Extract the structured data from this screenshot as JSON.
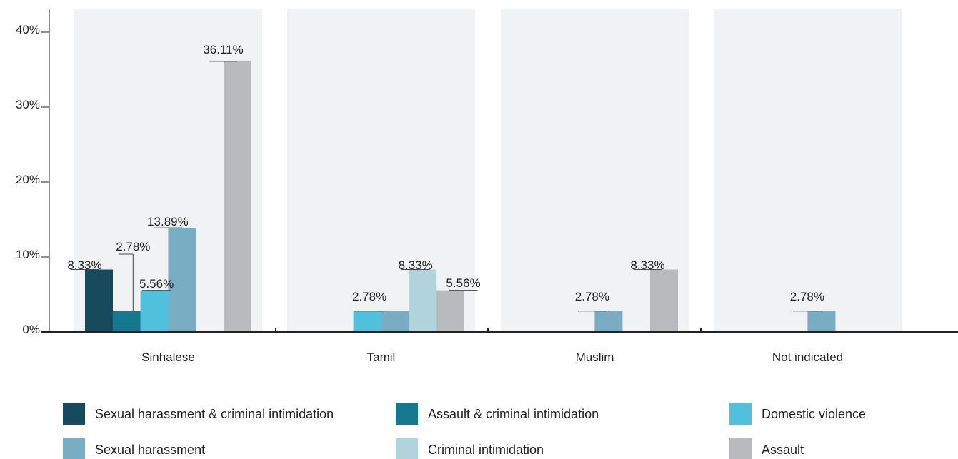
{
  "chart_data": {
    "type": "bar",
    "categories": [
      "Sinhalese",
      "Tamil",
      "Muslim",
      "Not indicated"
    ],
    "series": [
      {
        "name": "Sexual harassment & criminal intimidation",
        "color": "#164a5c",
        "values": [
          8.33,
          null,
          null,
          null
        ]
      },
      {
        "name": "Assault & criminal intimidation",
        "color": "#16788f",
        "values": [
          2.78,
          null,
          null,
          null
        ]
      },
      {
        "name": "Domestic violence",
        "color": "#4fc1dc",
        "values": [
          5.56,
          2.78,
          null,
          null
        ]
      },
      {
        "name": "Sexual harassment",
        "color": "#79adc4",
        "values": [
          13.89,
          2.78,
          2.78,
          2.78
        ]
      },
      {
        "name": "Criminal intimidation",
        "color": "#b0d3dc",
        "values": [
          null,
          8.33,
          null,
          null
        ]
      },
      {
        "name": "Assault",
        "color": "#b9babd",
        "values": [
          36.11,
          5.56,
          8.33,
          null
        ]
      }
    ],
    "data_labels": [
      [
        "8.33%",
        null,
        null,
        null
      ],
      [
        "2.78%",
        null,
        null,
        null
      ],
      [
        "5.56%",
        "2.78%",
        null,
        null
      ],
      [
        "13.89%",
        null,
        "2.78%",
        "2.78%"
      ],
      [
        null,
        "8.33%",
        null,
        null
      ],
      [
        "36.11%",
        "5.56%",
        "8.33%",
        null
      ]
    ],
    "y_ticks": [
      "0%",
      "10%",
      "20%",
      "30%",
      "40%"
    ],
    "ylim": [
      0,
      41
    ],
    "title": "",
    "xlabel": "",
    "ylabel": "",
    "grid": false,
    "legend_position": "bottom",
    "panel_color": "#f1f2f3"
  }
}
